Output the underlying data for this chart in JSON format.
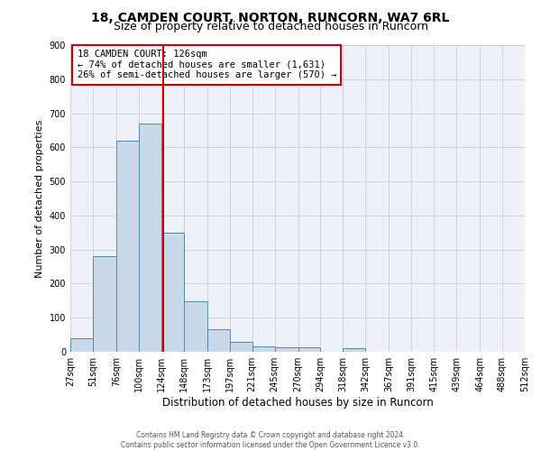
{
  "title": "18, CAMDEN COURT, NORTON, RUNCORN, WA7 6RL",
  "subtitle": "Size of property relative to detached houses in Runcorn",
  "xlabel": "Distribution of detached houses by size in Runcorn",
  "ylabel": "Number of detached properties",
  "bar_edges": [
    27,
    51,
    76,
    100,
    124,
    148,
    173,
    197,
    221,
    245,
    270,
    294,
    318,
    342,
    367,
    391,
    415,
    439,
    464,
    488,
    512
  ],
  "bar_heights": [
    40,
    280,
    620,
    670,
    350,
    148,
    65,
    30,
    15,
    12,
    12,
    0,
    10,
    0,
    0,
    0,
    0,
    0,
    0,
    0
  ],
  "bar_color": "#c9d9ea",
  "bar_edgecolor": "#5588aa",
  "vline_x": 126,
  "vline_color": "#cc0000",
  "annotation_text": "18 CAMDEN COURT: 126sqm\n← 74% of detached houses are smaller (1,631)\n26% of semi-detached houses are larger (570) →",
  "footer_line1": "Contains HM Land Registry data © Crown copyright and database right 2024.",
  "footer_line2": "Contains public sector information licensed under the Open Government Licence v3.0.",
  "ylim": [
    0,
    900
  ],
  "yticks": [
    0,
    100,
    200,
    300,
    400,
    500,
    600,
    700,
    800,
    900
  ],
  "plot_background": "#eef2f8",
  "title_fontsize": 10,
  "subtitle_fontsize": 9,
  "tick_label_fontsize": 7,
  "ylabel_fontsize": 8,
  "xlabel_fontsize": 8.5,
  "annotation_fontsize": 7.5
}
